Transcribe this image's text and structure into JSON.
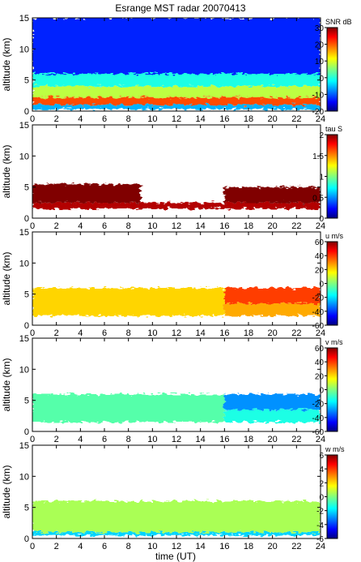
{
  "title": "Esrange MST radar 20070413",
  "xlabel": "time (UT)",
  "chart_data": [
    {
      "type": "heatmap",
      "ylabel": "altitude (km)",
      "colorbar_label": "SNR dB",
      "colorbar_ticks": [
        -20,
        -10,
        0,
        10,
        20,
        30
      ],
      "clim": [
        -20,
        30
      ],
      "xlim": [
        0,
        24
      ],
      "ylim": [
        0,
        15
      ],
      "xticks": [
        0,
        2,
        4,
        6,
        8,
        10,
        12,
        14,
        16,
        18,
        20,
        22,
        24
      ],
      "yticks": [
        0,
        5,
        10,
        15
      ],
      "layers": [
        {
          "time": [
            0,
            24
          ],
          "alt": [
            0.3,
            1.0
          ],
          "value": -5
        },
        {
          "time": [
            0,
            24
          ],
          "alt": [
            1.0,
            2.2
          ],
          "value": 20
        },
        {
          "time": [
            0,
            24
          ],
          "alt": [
            2.2,
            4.0
          ],
          "value": 8
        },
        {
          "time": [
            0,
            24
          ],
          "alt": [
            4.0,
            6.0
          ],
          "value": 0
        },
        {
          "time": [
            0,
            24
          ],
          "alt": [
            6.0,
            15.0
          ],
          "value": -12
        }
      ]
    },
    {
      "type": "heatmap",
      "ylabel": "altitude (km)",
      "colorbar_label": "tau S",
      "colorbar_ticks": [
        0,
        0.5,
        1,
        1.5,
        2
      ],
      "clim": [
        0,
        2
      ],
      "xlim": [
        0,
        24
      ],
      "ylim": [
        0,
        15
      ],
      "xticks": [
        0,
        2,
        4,
        6,
        8,
        10,
        12,
        14,
        16,
        18,
        20,
        22,
        24
      ],
      "yticks": [
        0,
        5,
        10,
        15
      ],
      "layers": [
        {
          "time": [
            0,
            24
          ],
          "alt": [
            1.5,
            2.5
          ],
          "value": 1.9
        },
        {
          "time": [
            0,
            9
          ],
          "alt": [
            2.5,
            5.5
          ],
          "value": 2.0
        },
        {
          "time": [
            16,
            24
          ],
          "alt": [
            2.5,
            5.0
          ],
          "value": 2.0
        }
      ]
    },
    {
      "type": "heatmap",
      "ylabel": "altitude (km)",
      "colorbar_label": "u m/s",
      "colorbar_ticks": [
        -60,
        -40,
        -20,
        0,
        20,
        40,
        60
      ],
      "clim": [
        -60,
        60
      ],
      "xlim": [
        0,
        24
      ],
      "ylim": [
        0,
        15
      ],
      "xticks": [
        0,
        2,
        4,
        6,
        8,
        10,
        12,
        14,
        16,
        18,
        20,
        22,
        24
      ],
      "yticks": [
        0,
        5,
        10,
        15
      ],
      "layers": [
        {
          "time": [
            0,
            16
          ],
          "alt": [
            1.5,
            6.0
          ],
          "value": 20
        },
        {
          "time": [
            16,
            24
          ],
          "alt": [
            1.5,
            3.5
          ],
          "value": 25
        },
        {
          "time": [
            16,
            24
          ],
          "alt": [
            3.5,
            6.0
          ],
          "value": 38
        }
      ]
    },
    {
      "type": "heatmap",
      "ylabel": "altitude (km)",
      "colorbar_label": "v m/s",
      "colorbar_ticks": [
        -60,
        -40,
        -20,
        0,
        20,
        40,
        60
      ],
      "clim": [
        -60,
        60
      ],
      "xlim": [
        0,
        24
      ],
      "ylim": [
        0,
        15
      ],
      "xticks": [
        0,
        2,
        4,
        6,
        8,
        10,
        12,
        14,
        16,
        18,
        20,
        22,
        24
      ],
      "yticks": [
        0,
        5,
        10,
        15
      ],
      "layers": [
        {
          "time": [
            0,
            16
          ],
          "alt": [
            1.5,
            6.0
          ],
          "value": -5
        },
        {
          "time": [
            16,
            24
          ],
          "alt": [
            1.5,
            3.5
          ],
          "value": -12
        },
        {
          "time": [
            16,
            24
          ],
          "alt": [
            3.5,
            6.0
          ],
          "value": -28
        }
      ]
    },
    {
      "type": "heatmap",
      "ylabel": "altitude (km)",
      "colorbar_label": "w m/s",
      "colorbar_ticks": [
        -6,
        -4,
        -2,
        0,
        2,
        4,
        6
      ],
      "clim": [
        -6,
        6
      ],
      "xlim": [
        0,
        24
      ],
      "ylim": [
        0,
        15
      ],
      "xticks": [
        0,
        2,
        4,
        6,
        8,
        10,
        12,
        14,
        16,
        18,
        20,
        22,
        24
      ],
      "yticks": [
        0,
        5,
        10,
        15
      ],
      "layers": [
        {
          "time": [
            0,
            24
          ],
          "alt": [
            0.5,
            1.0
          ],
          "value": -2
        },
        {
          "time": [
            0,
            24
          ],
          "alt": [
            1.0,
            6.0
          ],
          "value": 0.5
        }
      ]
    }
  ]
}
